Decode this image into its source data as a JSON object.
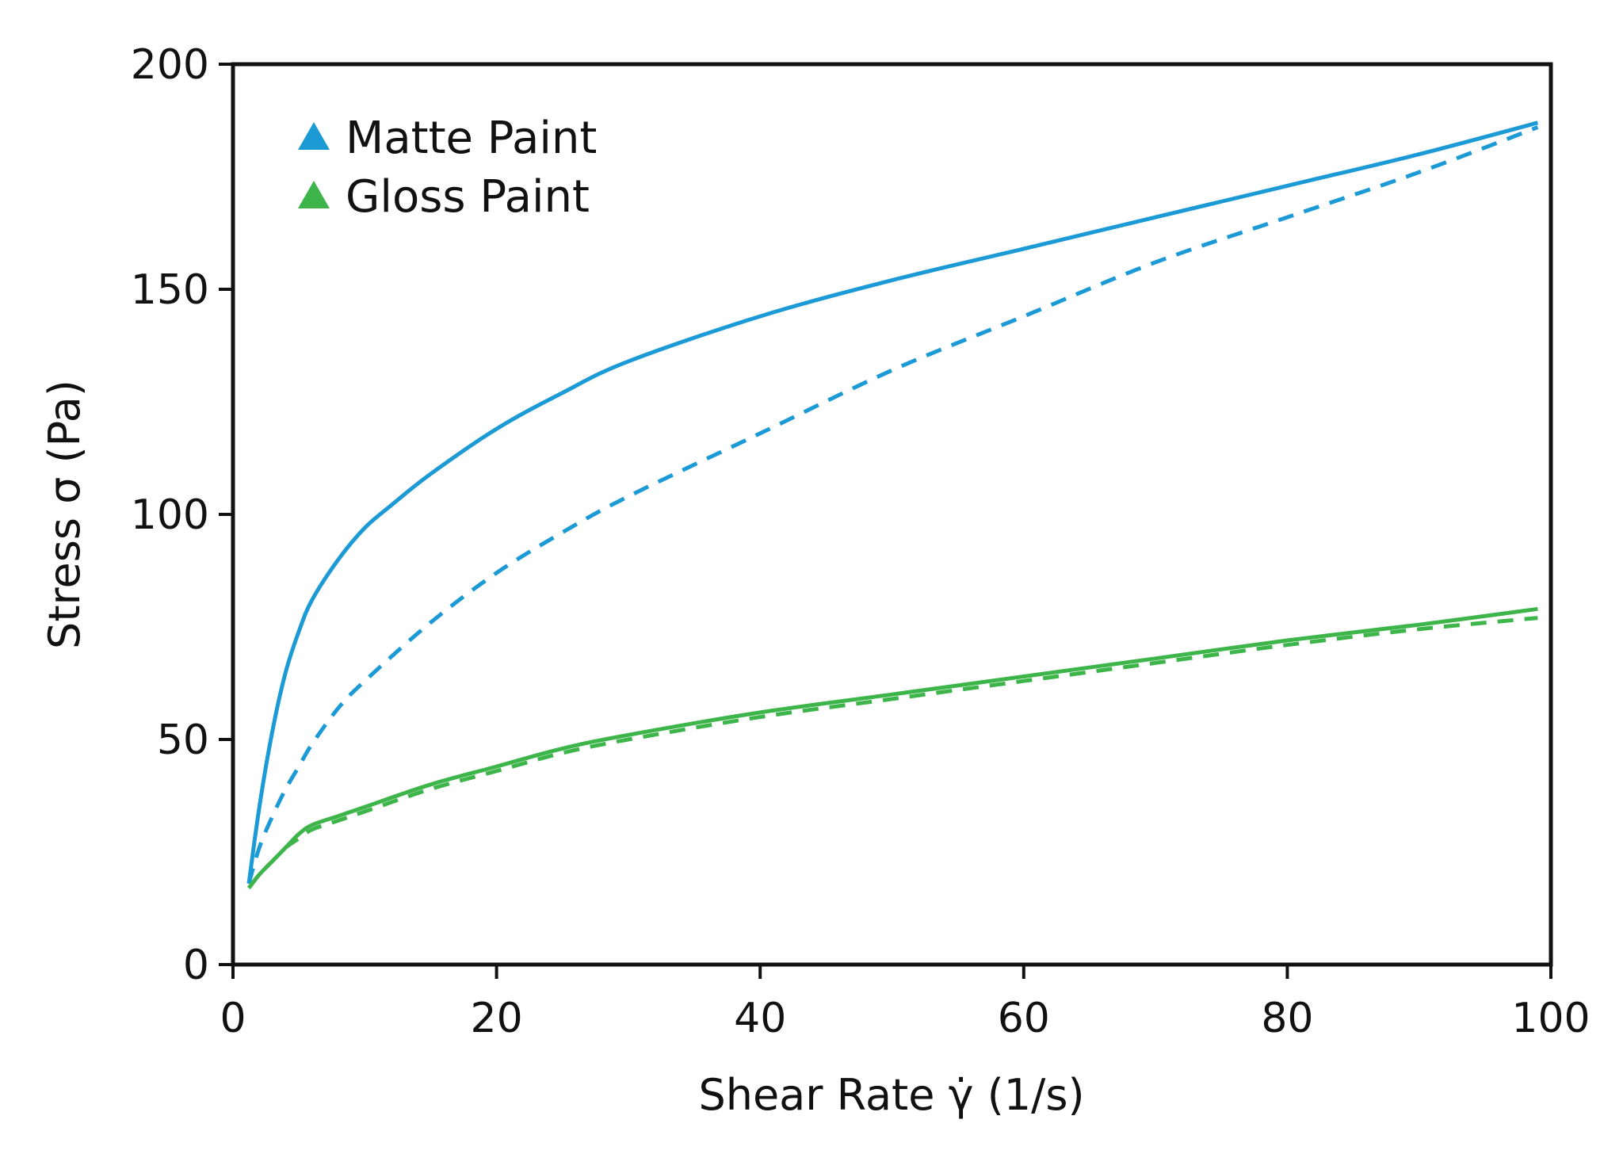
{
  "chart_data": {
    "type": "line",
    "xlabel": "Shear Rate γ̇ (1/s)",
    "ylabel": "Stress σ (Pa)",
    "xlim": [
      0,
      100
    ],
    "ylim": [
      0,
      200
    ],
    "x_ticks": [
      0,
      20,
      40,
      60,
      80,
      100
    ],
    "y_ticks": [
      0,
      50,
      100,
      150,
      200
    ],
    "grid": false,
    "legend_position": "top-left",
    "legend": [
      {
        "label": "Matte Paint",
        "color": "#1b9ad6",
        "marker": "triangle"
      },
      {
        "label": "Gloss Paint",
        "color": "#3db54a",
        "marker": "triangle"
      }
    ],
    "series": [
      {
        "group": "Matte Paint",
        "style": "solid",
        "color": "#1b9ad6",
        "x": [
          1.2,
          2,
          3,
          4,
          5,
          6,
          8,
          10,
          12,
          15,
          20,
          25,
          30,
          40,
          50,
          60,
          70,
          80,
          90,
          99
        ],
        "y": [
          18,
          35,
          52,
          65,
          74,
          81,
          90,
          97,
          102,
          109,
          119,
          127,
          134,
          144,
          152,
          159,
          166,
          173,
          180,
          187
        ]
      },
      {
        "group": "Matte Paint",
        "style": "dashed",
        "color": "#1b9ad6",
        "x": [
          1.2,
          2,
          3,
          4,
          5,
          6,
          8,
          10,
          15,
          20,
          25,
          30,
          40,
          50,
          60,
          70,
          80,
          90,
          99
        ],
        "y": [
          18,
          26,
          33,
          39,
          44,
          49,
          57,
          63,
          76,
          87,
          96,
          104,
          118,
          132,
          144,
          156,
          166,
          176,
          186
        ]
      },
      {
        "group": "Gloss Paint",
        "style": "solid",
        "color": "#3db54a",
        "x": [
          1.2,
          2,
          3,
          4,
          5,
          6,
          8,
          10,
          15,
          20,
          25,
          30,
          40,
          50,
          60,
          70,
          80,
          90,
          99
        ],
        "y": [
          17,
          20,
          23,
          26,
          29,
          31,
          33,
          35,
          40,
          44,
          48,
          51,
          56,
          60,
          64,
          68,
          72,
          75.5,
          79
        ]
      },
      {
        "group": "Gloss Paint",
        "style": "dashed",
        "color": "#3db54a",
        "x": [
          1.2,
          2,
          3,
          4,
          5,
          6,
          8,
          10,
          15,
          20,
          25,
          30,
          40,
          50,
          60,
          70,
          80,
          90,
          99
        ],
        "y": [
          17,
          20,
          23,
          26,
          28,
          30,
          32,
          34,
          39,
          43,
          47,
          50,
          55,
          59,
          63,
          67,
          71,
          74.5,
          77
        ]
      }
    ]
  }
}
